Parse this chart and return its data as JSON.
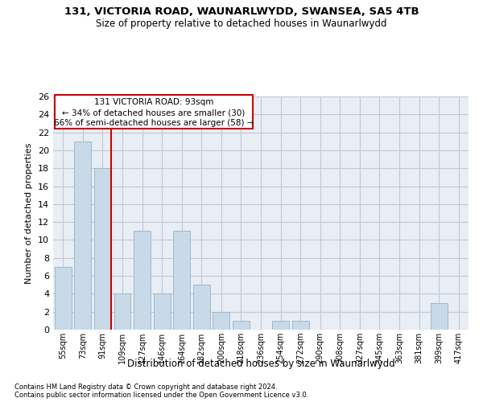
{
  "title1": "131, VICTORIA ROAD, WAUNARLWYDD, SWANSEA, SA5 4TB",
  "title2": "Size of property relative to detached houses in Waunarlwydd",
  "xlabel": "Distribution of detached houses by size in Waunarlwydd",
  "ylabel": "Number of detached properties",
  "footer1": "Contains HM Land Registry data © Crown copyright and database right 2024.",
  "footer2": "Contains public sector information licensed under the Open Government Licence v3.0.",
  "bins": [
    "55sqm",
    "73sqm",
    "91sqm",
    "109sqm",
    "127sqm",
    "146sqm",
    "164sqm",
    "182sqm",
    "200sqm",
    "218sqm",
    "236sqm",
    "254sqm",
    "272sqm",
    "290sqm",
    "308sqm",
    "327sqm",
    "345sqm",
    "363sqm",
    "381sqm",
    "399sqm",
    "417sqm"
  ],
  "values": [
    7,
    21,
    18,
    4,
    11,
    4,
    11,
    5,
    2,
    1,
    0,
    1,
    1,
    0,
    0,
    0,
    0,
    0,
    0,
    3,
    0
  ],
  "bar_color": "#c8d9e8",
  "bar_edge_color": "#a0b8cc",
  "annotation_text1": "131 VICTORIA ROAD: 93sqm",
  "annotation_text2": "← 34% of detached houses are smaller (30)",
  "annotation_text3": "66% of semi-detached houses are larger (58) →",
  "annotation_box_edge_color": "#cc0000",
  "subject_line_color": "#cc0000",
  "ylim": [
    0,
    26
  ],
  "yticks": [
    0,
    2,
    4,
    6,
    8,
    10,
    12,
    14,
    16,
    18,
    20,
    22,
    24,
    26
  ],
  "grid_color": "#c0c8d8",
  "background_color": "#e8eef4",
  "title1_fontsize": 9.5,
  "title2_fontsize": 8.5
}
